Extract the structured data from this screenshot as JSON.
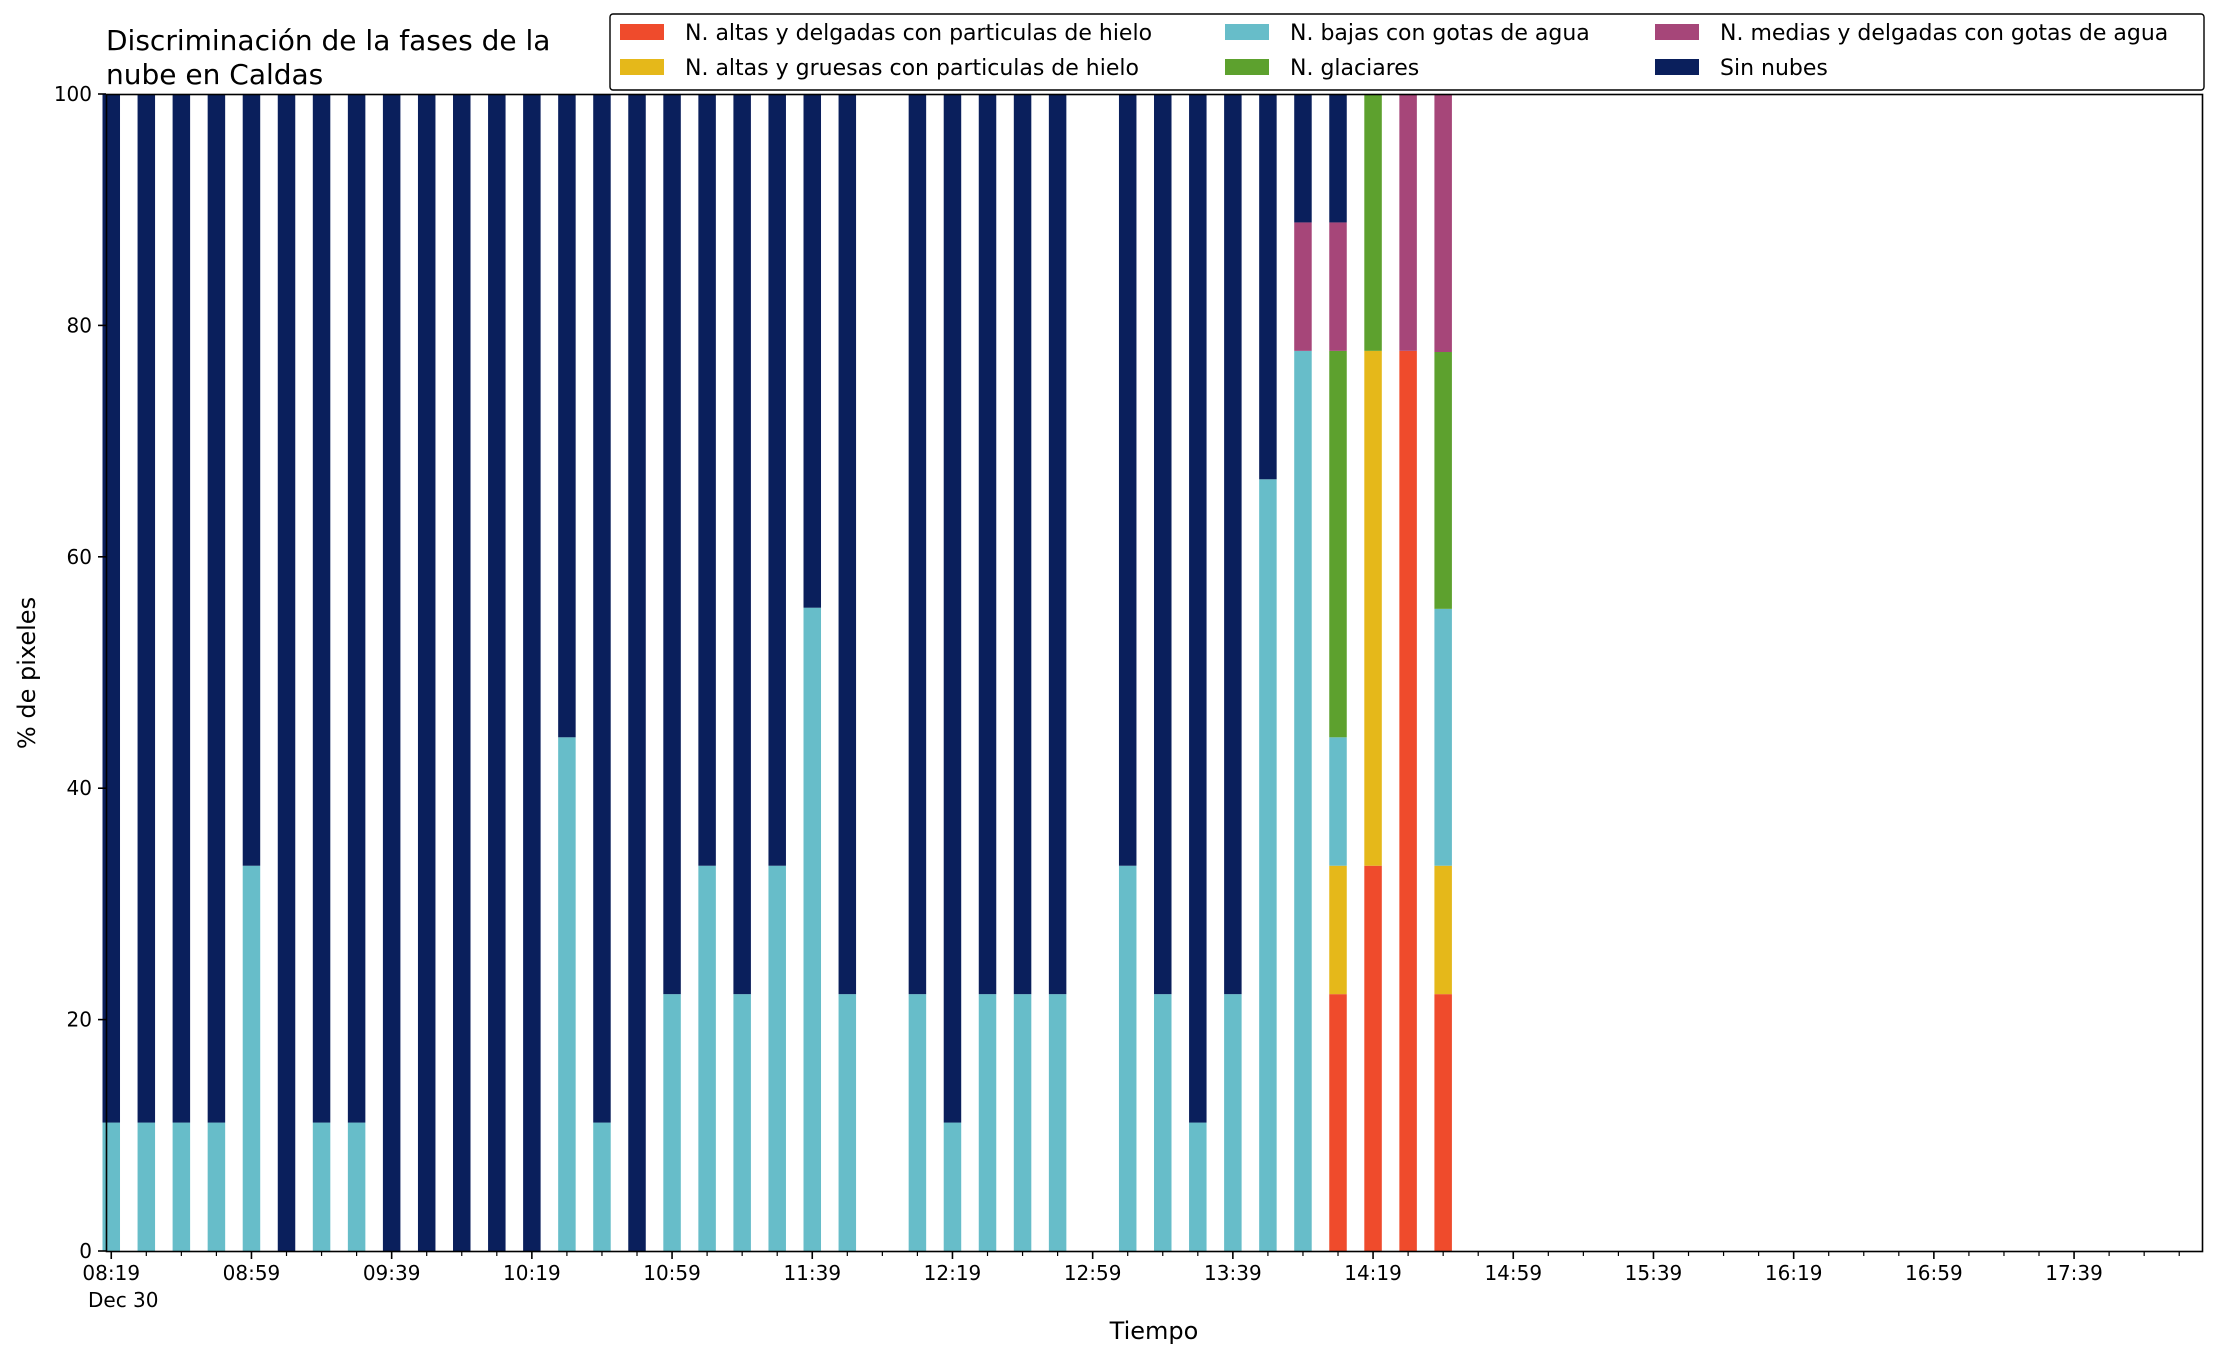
{
  "chart_data": {
    "type": "bar",
    "stacked": true,
    "title_lines": [
      "Discriminación de la fases de la",
      "nube en Caldas"
    ],
    "xlabel": "Tiempo",
    "ylabel": "% de pixeles",
    "ylim": [
      0,
      100
    ],
    "y_ticks": [
      "0",
      "20",
      "40",
      "60",
      "80",
      "100"
    ],
    "x_tick_labels": [
      "08:19",
      "08:59",
      "09:39",
      "10:19",
      "10:59",
      "11:39",
      "12:19",
      "12:59",
      "13:39",
      "14:19",
      "14:59",
      "15:39",
      "16:19",
      "16:59",
      "17:39"
    ],
    "x_date_label": "Dec 30",
    "x_range": [
      "08:19",
      "18:14"
    ],
    "x_step_minutes": 10,
    "grid": false,
    "legend_position": "top-right",
    "categories": [
      "08:19",
      "08:29",
      "08:39",
      "08:49",
      "08:59",
      "09:09",
      "09:19",
      "09:29",
      "09:39",
      "09:49",
      "09:59",
      "10:09",
      "10:19",
      "10:29",
      "10:39",
      "10:49",
      "10:59",
      "11:09",
      "11:19",
      "11:29",
      "11:39",
      "11:49",
      "11:59",
      "12:09",
      "12:19",
      "12:29",
      "12:39",
      "12:49",
      "12:59",
      "13:09",
      "13:19",
      "13:29",
      "13:39",
      "13:49",
      "13:59",
      "14:09",
      "14:19",
      "14:29",
      "14:39"
    ],
    "series": [
      {
        "name": "N. altas y delgadas con particulas de hielo",
        "color": "#ef4b2c",
        "values": [
          0,
          0,
          0,
          0,
          0,
          0,
          0,
          0,
          0,
          0,
          0,
          0,
          0,
          0,
          0,
          0,
          0,
          0,
          0,
          0,
          0,
          0,
          0,
          0,
          0,
          0,
          0,
          0,
          0,
          0,
          0,
          0,
          0,
          0,
          0,
          22.2,
          33.3,
          77.8,
          22.2
        ]
      },
      {
        "name": "N. altas y gruesas con particulas de hielo",
        "color": "#e5b81a",
        "values": [
          0,
          0,
          0,
          0,
          0,
          0,
          0,
          0,
          0,
          0,
          0,
          0,
          0,
          0,
          0,
          0,
          0,
          0,
          0,
          0,
          0,
          0,
          0,
          0,
          0,
          0,
          0,
          0,
          0,
          0,
          0,
          0,
          0,
          0,
          0,
          11.1,
          44.5,
          0,
          11.1
        ]
      },
      {
        "name": "N. bajas con gotas de agua",
        "color": "#67bdc9",
        "values": [
          11.1,
          11.1,
          11.1,
          11.1,
          33.3,
          0,
          11.1,
          11.1,
          0,
          0,
          0,
          0,
          0,
          44.4,
          11.1,
          0,
          22.2,
          33.3,
          22.2,
          33.3,
          55.6,
          22.2,
          null,
          22.2,
          11.1,
          22.2,
          22.2,
          22.2,
          null,
          33.3,
          22.2,
          11.1,
          22.2,
          66.7,
          77.8,
          11.1,
          0,
          0,
          22.2
        ]
      },
      {
        "name": "N. glaciares",
        "color": "#5da12e",
        "values": [
          0,
          0,
          0,
          0,
          0,
          0,
          0,
          0,
          0,
          0,
          0,
          0,
          0,
          0,
          0,
          0,
          0,
          0,
          0,
          0,
          0,
          0,
          0,
          0,
          0,
          0,
          0,
          0,
          0,
          0,
          0,
          0,
          0,
          0,
          0,
          33.4,
          22.2,
          0,
          22.2
        ]
      },
      {
        "name": "N. medias y delgadas con gotas de agua",
        "color": "#a64679",
        "values": [
          0,
          0,
          0,
          0,
          0,
          0,
          0,
          0,
          0,
          0,
          0,
          0,
          0,
          0,
          0,
          0,
          0,
          0,
          0,
          0,
          0,
          0,
          0,
          0,
          0,
          0,
          0,
          0,
          0,
          0,
          0,
          0,
          0,
          0,
          11.1,
          11.1,
          0,
          22.2,
          22.3
        ]
      },
      {
        "name": "Sin nubes",
        "color": "#0a1f5c",
        "values": [
          88.9,
          88.9,
          88.9,
          88.9,
          66.7,
          100,
          88.9,
          88.9,
          100,
          100,
          100,
          100,
          100,
          55.6,
          88.9,
          100,
          77.8,
          66.7,
          77.8,
          66.7,
          44.4,
          77.8,
          null,
          77.8,
          88.9,
          77.8,
          77.8,
          77.8,
          null,
          66.7,
          77.8,
          88.9,
          77.8,
          33.3,
          11.1,
          11.1,
          0,
          0,
          0
        ]
      }
    ]
  }
}
